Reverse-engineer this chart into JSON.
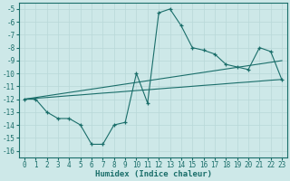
{
  "x": [
    0,
    1,
    2,
    3,
    4,
    5,
    6,
    7,
    8,
    9,
    10,
    11,
    12,
    13,
    14,
    15,
    16,
    17,
    18,
    19,
    20,
    21,
    22,
    23
  ],
  "y_main": [
    -12,
    -12,
    -13,
    -13.5,
    -13.5,
    -14,
    -15.5,
    -15.5,
    -14,
    -13.8,
    -10,
    -12.3,
    -5.3,
    -5,
    -6.3,
    -8,
    -8.2,
    -8.5,
    -9.3,
    -9.5,
    -9.7,
    -8,
    -8.3,
    -10.5
  ],
  "y_line1": [
    -12,
    -11.93,
    -11.87,
    -11.8,
    -11.73,
    -11.67,
    -11.6,
    -11.53,
    -11.47,
    -11.4,
    -11.33,
    -11.27,
    -11.2,
    -11.13,
    -11.07,
    -11.0,
    -10.93,
    -10.87,
    -10.8,
    -10.73,
    -10.67,
    -10.6,
    -10.53,
    -10.47
  ],
  "y_line2": [
    -12,
    -11.87,
    -11.74,
    -11.61,
    -11.48,
    -11.35,
    -11.22,
    -11.09,
    -10.96,
    -10.83,
    -10.7,
    -10.57,
    -10.44,
    -10.31,
    -10.18,
    -10.05,
    -9.92,
    -9.79,
    -9.66,
    -9.53,
    -9.4,
    -9.27,
    -9.14,
    -9.01
  ],
  "bg_color": "#cde8e8",
  "line_color": "#1a6e6a",
  "grid_color": "#b8d8d8",
  "xlabel": "Humidex (Indice chaleur)",
  "ylim": [
    -16.5,
    -4.5
  ],
  "xlim": [
    -0.5,
    23.5
  ],
  "yticks": [
    -5,
    -6,
    -7,
    -8,
    -9,
    -10,
    -11,
    -12,
    -13,
    -14,
    -15,
    -16
  ],
  "xticks": [
    0,
    1,
    2,
    3,
    4,
    5,
    6,
    7,
    8,
    9,
    10,
    11,
    12,
    13,
    14,
    15,
    16,
    17,
    18,
    19,
    20,
    21,
    22,
    23
  ],
  "label_fontsize": 6.5,
  "tick_fontsize": 5.5
}
